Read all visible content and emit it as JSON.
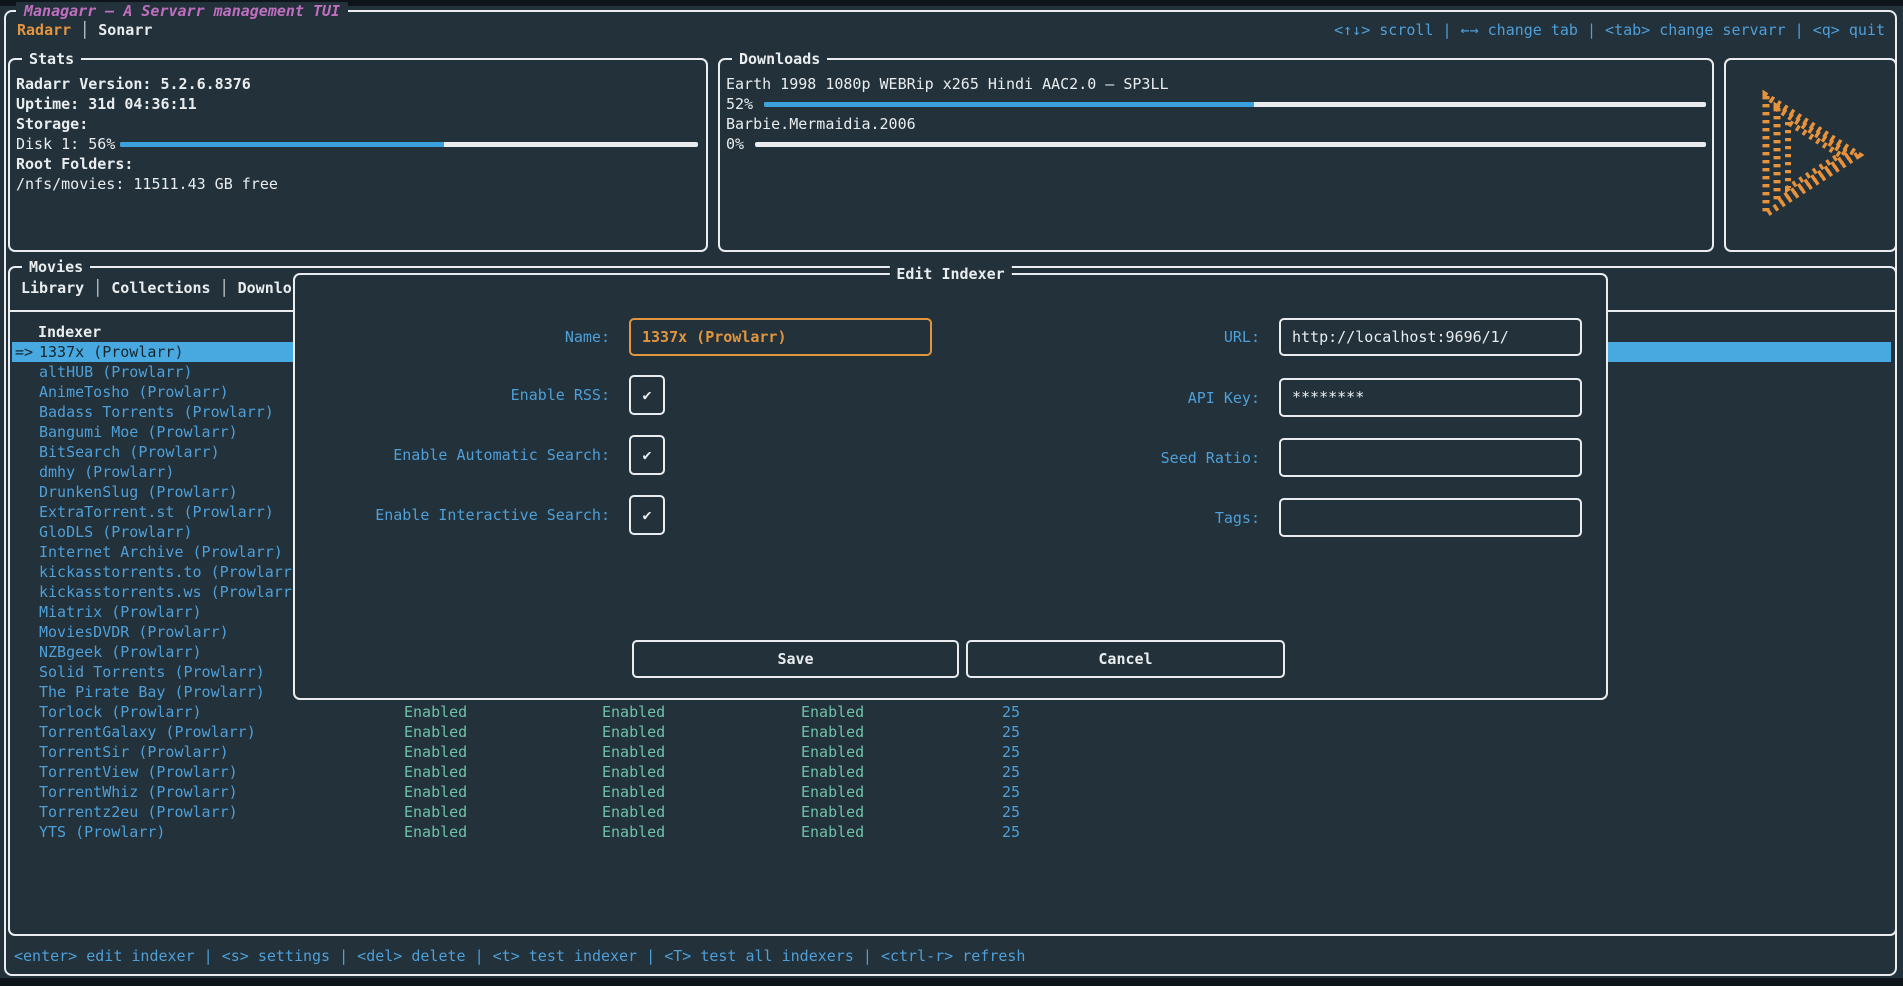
{
  "colors": {
    "background": "#22313a",
    "accent_blue": "#4f9fd8",
    "selection_blue": "#47a9e0",
    "accent_orange": "#e2953f",
    "title_magenta": "#c06ec0",
    "enabled_teal": "#6fc2a8",
    "progress_blue": "#3aa0de"
  },
  "titlebar": {
    "app_title": "Managarr — A Servarr management TUI",
    "servarr_tabs": [
      {
        "label": "Radarr",
        "active": true
      },
      {
        "label": "Sonarr",
        "active": false
      }
    ],
    "help": "<↑↓> scroll | ←→ change tab | <tab> change servarr | <q> quit"
  },
  "stats": {
    "panel_title": "Stats",
    "version_line": "Radarr Version:  5.2.6.8376",
    "uptime_line": "Uptime: 31d 04:36:11",
    "storage_heading": "Storage:",
    "disk_label": "Disk 1: 56%",
    "disk_percent": 56,
    "root_folders_heading": "Root Folders:",
    "root_folder_line": "/nfs/movies: 11511.43 GB free"
  },
  "downloads": {
    "panel_title": "Downloads",
    "items": [
      {
        "name": "Earth 1998 1080p WEBRip x265 Hindi AAC2.0 – SP3LL",
        "percent_label": "52%",
        "percent": 52
      },
      {
        "name": "Barbie.Mermaidia.2006",
        "percent_label": "0%",
        "percent": 0
      }
    ]
  },
  "logo": {
    "icon": "managarr-play-logo",
    "color": "#e8923c"
  },
  "movies": {
    "panel_title": "Movies",
    "tabs": [
      "Library",
      "Collections",
      "Downlo"
    ],
    "table_header": "Indexer",
    "selected_indicator": "=>",
    "selected_index": 0,
    "indexers": [
      "1337x (Prowlarr)",
      "altHUB (Prowlarr)",
      "AnimeTosho (Prowlarr)",
      "Badass Torrents (Prowlarr)",
      "Bangumi Moe (Prowlarr)",
      "BitSearch (Prowlarr)",
      "dmhy (Prowlarr)",
      "DrunkenSlug (Prowlarr)",
      "ExtraTorrent.st (Prowlarr)",
      "GloDLS (Prowlarr)",
      "Internet Archive (Prowlarr)",
      "kickasstorrents.to (Prowlarr)",
      "kickasstorrents.ws (Prowlarr)",
      "Miatrix (Prowlarr)",
      "MoviesDVDR (Prowlarr)",
      "NZBgeek (Prowlarr)",
      "Solid Torrents (Prowlarr)",
      "The Pirate Bay (Prowlarr)",
      "Torlock (Prowlarr)",
      "TorrentGalaxy (Prowlarr)",
      "TorrentSir (Prowlarr)",
      "TorrentView (Prowlarr)",
      "TorrentWhiz (Prowlarr)",
      "Torrentz2eu (Prowlarr)",
      "YTS (Prowlarr)"
    ],
    "background_row_values": {
      "rss": "Enabled",
      "automatic_search": "Enabled",
      "interactive_search": "Enabled",
      "priority": "25"
    },
    "visible_detail_rows_from": 18
  },
  "modal": {
    "title": "Edit Indexer",
    "checkmark": "✔",
    "fields": {
      "name": {
        "label": "Name:",
        "value": "1337x (Prowlarr)"
      },
      "url": {
        "label": "URL:",
        "value": "http://localhost:9696/1/"
      },
      "enable_rss": {
        "label": "Enable RSS:",
        "checked": true
      },
      "api_key": {
        "label": "API Key:",
        "value": "********"
      },
      "enable_automatic_search": {
        "label": "Enable Automatic Search:",
        "checked": true
      },
      "seed_ratio": {
        "label": "Seed Ratio:",
        "value": ""
      },
      "enable_interactive_search": {
        "label": "Enable Interactive Search:",
        "checked": true
      },
      "tags": {
        "label": "Tags:",
        "value": ""
      }
    },
    "buttons": {
      "save": "Save",
      "cancel": "Cancel"
    }
  },
  "footer": {
    "help": "<enter> edit indexer | <s> settings | <del> delete | <t> test indexer | <T> test all indexers | <ctrl-r> refresh"
  }
}
